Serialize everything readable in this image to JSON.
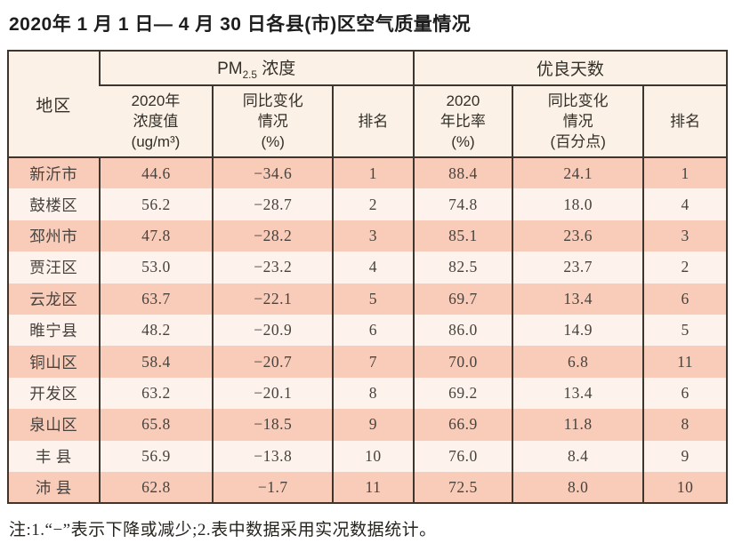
{
  "title": "2020年 1 月 1 日— 4 月 30 日各县(市)区空气质量情况",
  "table": {
    "region_header": "地区",
    "pm_group": {
      "prefix": "PM",
      "sub": "2.5",
      "suffix": " 浓度"
    },
    "days_group": "优良天数",
    "sub_headers": [
      "2020年\n浓度值\n(ug/m³)",
      "同比变化\n情况\n(%)",
      "排名",
      "2020\n年比率\n(%)",
      "同比变化\n情况\n(百分点)",
      "排名"
    ],
    "rows": [
      [
        "新沂市",
        "44.6",
        "−34.6",
        "1",
        "88.4",
        "24.1",
        "1"
      ],
      [
        "鼓楼区",
        "56.2",
        "−28.7",
        "2",
        "74.8",
        "18.0",
        "4"
      ],
      [
        "邳州市",
        "47.8",
        "−28.2",
        "3",
        "85.1",
        "23.6",
        "3"
      ],
      [
        "贾汪区",
        "53.0",
        "−23.2",
        "4",
        "82.5",
        "23.7",
        "2"
      ],
      [
        "云龙区",
        "63.7",
        "−22.1",
        "5",
        "69.7",
        "13.4",
        "6"
      ],
      [
        "睢宁县",
        "48.2",
        "−20.9",
        "6",
        "86.0",
        "14.9",
        "5"
      ],
      [
        "铜山区",
        "58.4",
        "−20.7",
        "7",
        "70.0",
        "6.8",
        "11"
      ],
      [
        "开发区",
        "63.2",
        "−20.1",
        "8",
        "69.2",
        "13.4",
        "6"
      ],
      [
        "泉山区",
        "65.8",
        "−18.5",
        "9",
        "66.9",
        "11.8",
        "8"
      ],
      [
        "丰 县",
        "56.9",
        "−13.8",
        "10",
        "76.0",
        "8.4",
        "9"
      ],
      [
        "沛 县",
        "62.8",
        "−1.7",
        "11",
        "72.5",
        "8.0",
        "10"
      ]
    ]
  },
  "note": "注:1.“−”表示下降或减少;2.表中数据采用实况数据统计。",
  "colors": {
    "border": "#3d362f",
    "header_bg": "#fbf1e6",
    "row_odd": "#f8ccb8",
    "row_even": "#fdf3ec"
  }
}
